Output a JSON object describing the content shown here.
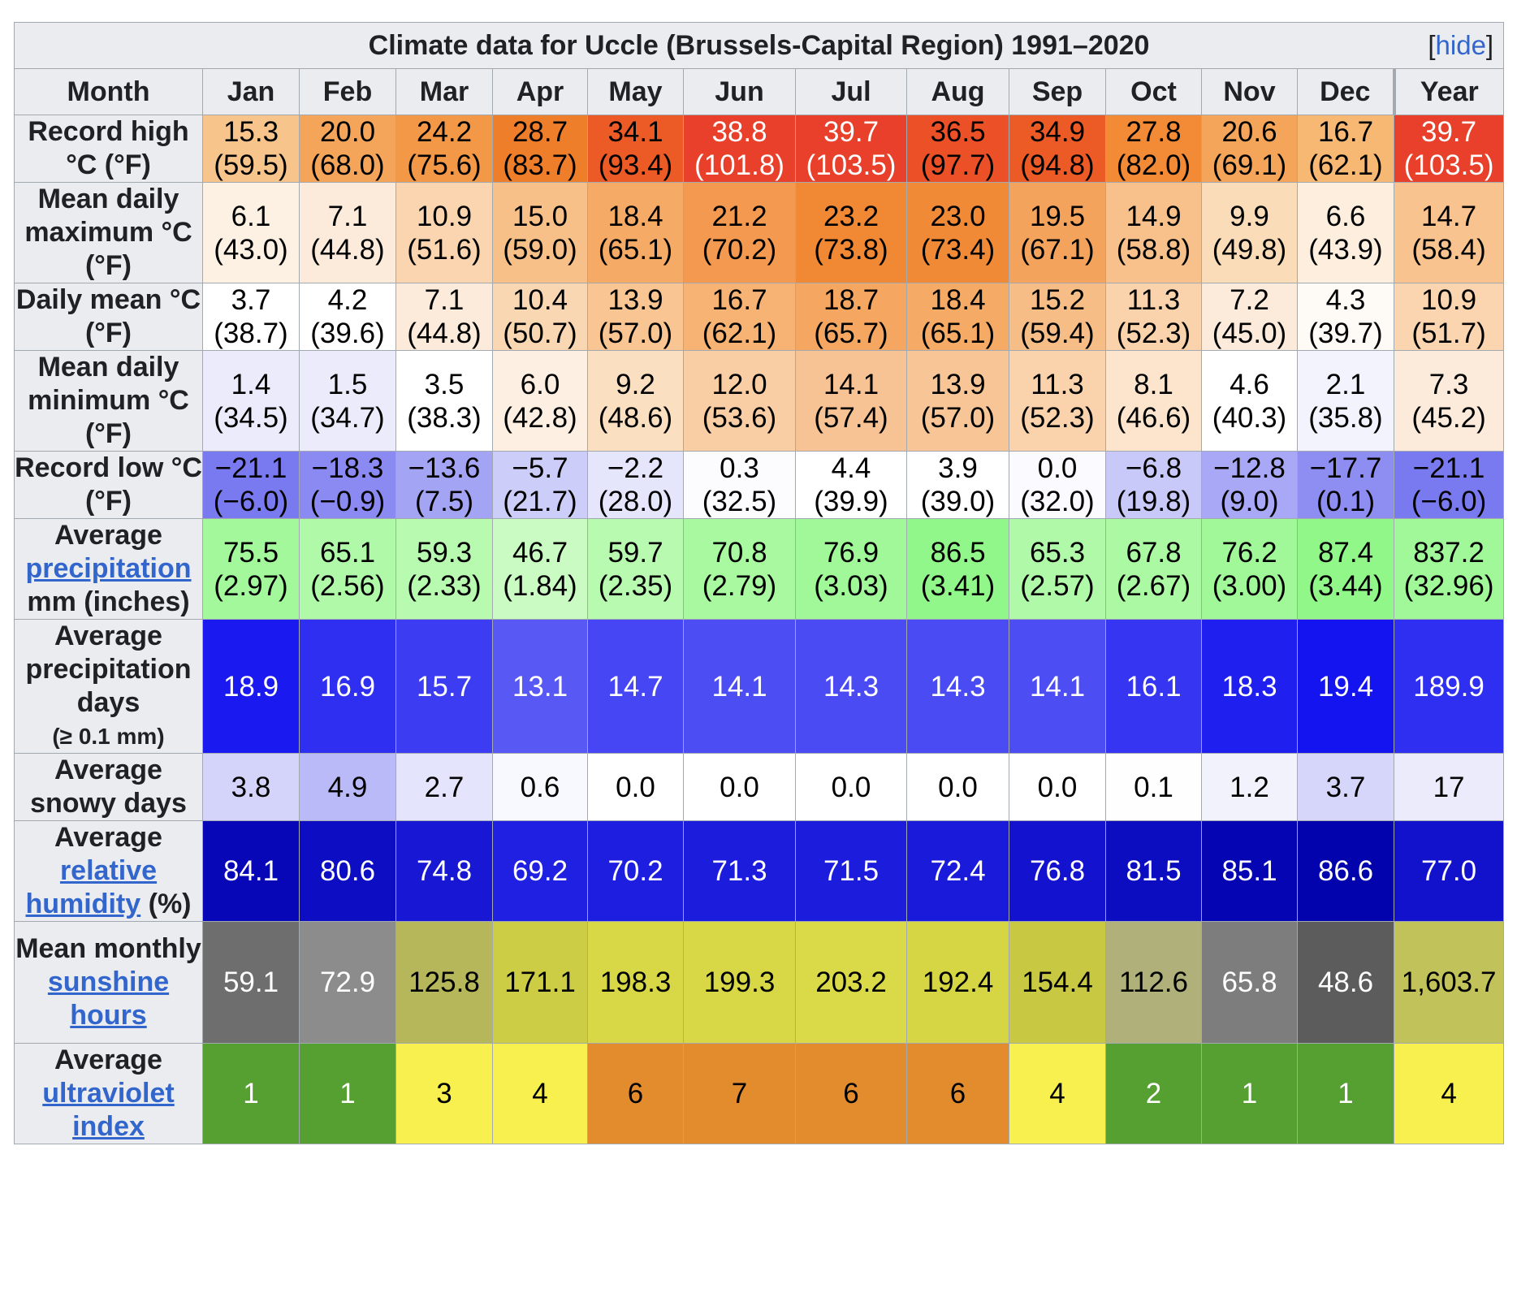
{
  "title": "Climate data for Uccle (Brussels-Capital Region) 1991–2020",
  "hide_open": "[",
  "hide_label": "hide",
  "hide_close": "]",
  "month_label": "Month",
  "columns": [
    "Jan",
    "Feb",
    "Mar",
    "Apr",
    "May",
    "Jun",
    "Jul",
    "Aug",
    "Sep",
    "Oct",
    "Nov",
    "Dec",
    "Year"
  ],
  "rows": [
    {
      "id": "record-high",
      "label_parts": [
        {
          "t": "Record high °C (°F)"
        }
      ],
      "values": [
        "15.3\n(59.5)",
        "20.0\n(68.0)",
        "24.2\n(75.6)",
        "28.7\n(83.7)",
        "34.1\n(93.4)",
        "38.8\n(101.8)",
        "39.7\n(103.5)",
        "36.5\n(97.7)",
        "34.9\n(94.8)",
        "27.8\n(82.0)",
        "20.6\n(69.1)",
        "16.7\n(62.1)",
        "39.7\n(103.5)"
      ],
      "colors": [
        "#f7c48b",
        "#f4a55a",
        "#f29846",
        "#ef7e2b",
        "#ec5a26",
        "#e8402a",
        "#e8402a",
        "#ec5026",
        "#ec5a26",
        "#f28a36",
        "#f4a55a",
        "#f6b872",
        "#e8402a"
      ],
      "text_colors": [
        "#000",
        "#000",
        "#000",
        "#000",
        "#000",
        "#fff",
        "#fff",
        "#000",
        "#000",
        "#000",
        "#000",
        "#000",
        "#fff"
      ]
    },
    {
      "id": "mean-max",
      "label_parts": [
        {
          "t": "Mean daily maximum °C (°F)"
        }
      ],
      "values": [
        "6.1\n(43.0)",
        "7.1\n(44.8)",
        "10.9\n(51.6)",
        "15.0\n(59.0)",
        "18.4\n(65.1)",
        "21.2\n(70.2)",
        "23.2\n(73.8)",
        "23.0\n(73.4)",
        "19.5\n(67.1)",
        "14.9\n(58.8)",
        "9.9\n(49.8)",
        "6.6\n(43.9)",
        "14.7\n(58.4)"
      ],
      "colors": [
        "#fdf1e4",
        "#fcebda",
        "#fad5b0",
        "#f8c089",
        "#f5aa65",
        "#f39a50",
        "#f18833",
        "#f18a36",
        "#f4a35c",
        "#f8c18b",
        "#fbdcb9",
        "#fdeedd",
        "#f8c38e"
      ],
      "text_colors": [
        "#000",
        "#000",
        "#000",
        "#000",
        "#000",
        "#000",
        "#000",
        "#000",
        "#000",
        "#000",
        "#000",
        "#000",
        "#000"
      ]
    },
    {
      "id": "daily-mean",
      "label_parts": [
        {
          "t": "Daily mean °C (°F)"
        }
      ],
      "values": [
        "3.7\n(38.7)",
        "4.2\n(39.6)",
        "7.1\n(44.8)",
        "10.4\n(50.7)",
        "13.9\n(57.0)",
        "16.7\n(62.1)",
        "18.7\n(65.7)",
        "18.4\n(65.1)",
        "15.2\n(59.4)",
        "11.3\n(52.3)",
        "7.2\n(45.0)",
        "4.3\n(39.7)",
        "10.9\n(51.7)"
      ],
      "colors": [
        "#ffffff",
        "#ffffff",
        "#fcebda",
        "#fad7b3",
        "#f8c593",
        "#f6b374",
        "#f5a762",
        "#f5aa65",
        "#f7bd87",
        "#fad2ab",
        "#fcebda",
        "#fefaf5",
        "#fad5b0"
      ],
      "text_colors": [
        "#000",
        "#000",
        "#000",
        "#000",
        "#000",
        "#000",
        "#000",
        "#000",
        "#000",
        "#000",
        "#000",
        "#000",
        "#000"
      ]
    },
    {
      "id": "mean-min",
      "label_parts": [
        {
          "t": "Mean daily minimum °C (°F)"
        }
      ],
      "values": [
        "1.4\n(34.5)",
        "1.5\n(34.7)",
        "3.5\n(38.3)",
        "6.0\n(42.8)",
        "9.2\n(48.6)",
        "12.0\n(53.6)",
        "14.1\n(57.4)",
        "13.9\n(57.0)",
        "11.3\n(52.3)",
        "8.1\n(46.6)",
        "4.6\n(40.3)",
        "2.1\n(35.8)",
        "7.3\n(45.2)"
      ],
      "colors": [
        "#ebebfb",
        "#ebebfb",
        "#ffffff",
        "#fdf0e2",
        "#fbdfc1",
        "#f9cea4",
        "#f8c394",
        "#f8c597",
        "#fad3ad",
        "#fce5cc",
        "#ffffff",
        "#f3f3fd",
        "#fceadb"
      ],
      "text_colors": [
        "#000",
        "#000",
        "#000",
        "#000",
        "#000",
        "#000",
        "#000",
        "#000",
        "#000",
        "#000",
        "#000",
        "#000",
        "#000"
      ]
    },
    {
      "id": "record-low",
      "label_parts": [
        {
          "t": "Record low °C (°F)"
        }
      ],
      "values": [
        "−21.1\n(−6.0)",
        "−18.3\n(−0.9)",
        "−13.6\n(7.5)",
        "−5.7\n(21.7)",
        "−2.2\n(28.0)",
        "0.3\n(32.5)",
        "4.4\n(39.9)",
        "3.9\n(39.0)",
        "0.0\n(32.0)",
        "−6.8\n(19.8)",
        "−12.8\n(9.0)",
        "−17.7\n(0.1)",
        "−21.1\n(−6.0)"
      ],
      "colors": [
        "#7a7af0",
        "#8a8af2",
        "#a4a4f5",
        "#cdcdf9",
        "#e5e5fc",
        "#fcfcff",
        "#ffffff",
        "#ffffff",
        "#fafaff",
        "#c9c9f9",
        "#a8a8f6",
        "#8d8df2",
        "#7a7af0"
      ],
      "text_colors": [
        "#000",
        "#000",
        "#000",
        "#000",
        "#000",
        "#000",
        "#000",
        "#000",
        "#000",
        "#000",
        "#000",
        "#000",
        "#000"
      ]
    },
    {
      "id": "precip",
      "label_parts": [
        {
          "t": "Average "
        },
        {
          "t": "precipitation",
          "link": true
        },
        {
          "t": " mm (inches)"
        }
      ],
      "values": [
        "75.5\n(2.97)",
        "65.1\n(2.56)",
        "59.3\n(2.33)",
        "46.7\n(1.84)",
        "59.7\n(2.35)",
        "70.8\n(2.79)",
        "76.9\n(3.03)",
        "86.5\n(3.41)",
        "65.3\n(2.57)",
        "67.8\n(2.67)",
        "76.2\n(3.00)",
        "87.4\n(3.44)",
        "837.2\n(32.96)"
      ],
      "colors": [
        "#a2f89a",
        "#b0f9a8",
        "#b8faaf",
        "#c9fbc2",
        "#b8faaf",
        "#a8f9a0",
        "#a0f898",
        "#92f78a",
        "#b0f9a8",
        "#acf9a4",
        "#a1f899",
        "#91f789",
        "#a1f899"
      ],
      "text_colors": [
        "#000",
        "#000",
        "#000",
        "#000",
        "#000",
        "#000",
        "#000",
        "#000",
        "#000",
        "#000",
        "#000",
        "#000",
        "#000"
      ]
    },
    {
      "id": "precip-days",
      "label_parts": [
        {
          "t": "Average precipitation days"
        },
        {
          "t": "(≥ 0.1 mm)",
          "small": true,
          "block": true
        }
      ],
      "values": [
        "18.9",
        "16.9",
        "15.7",
        "13.1",
        "14.7",
        "14.1",
        "14.3",
        "14.3",
        "14.1",
        "16.1",
        "18.3",
        "19.4",
        "189.9"
      ],
      "colors": [
        "#1a1af0",
        "#2f2ff2",
        "#3c3cf3",
        "#5858f5",
        "#4646f4",
        "#4d4df4",
        "#4b4bf4",
        "#4b4bf4",
        "#4d4df4",
        "#3535f2",
        "#1f1ff0",
        "#1414f0",
        "#2f2ff2"
      ],
      "text_colors": [
        "#fff",
        "#fff",
        "#fff",
        "#fff",
        "#fff",
        "#fff",
        "#fff",
        "#fff",
        "#fff",
        "#fff",
        "#fff",
        "#fff",
        "#fff"
      ]
    },
    {
      "id": "snow-days",
      "label_parts": [
        {
          "t": "Average snowy days"
        }
      ],
      "values": [
        "3.8",
        "4.9",
        "2.7",
        "0.6",
        "0.0",
        "0.0",
        "0.0",
        "0.0",
        "0.0",
        "0.1",
        "1.2",
        "3.7",
        "17"
      ],
      "colors": [
        "#d4d4fb",
        "#babaf8",
        "#e4e4fc",
        "#f8f8ff",
        "#ffffff",
        "#ffffff",
        "#ffffff",
        "#ffffff",
        "#ffffff",
        "#fefeff",
        "#f2f2fd",
        "#d6d6fb",
        "#ebebfb"
      ],
      "text_colors": [
        "#000",
        "#000",
        "#000",
        "#000",
        "#000",
        "#000",
        "#000",
        "#000",
        "#000",
        "#000",
        "#000",
        "#000",
        "#000"
      ]
    },
    {
      "id": "humidity",
      "label_parts": [
        {
          "t": "Average "
        },
        {
          "t": "relative humidity",
          "link": true
        },
        {
          "t": " (%)"
        }
      ],
      "values": [
        "84.1",
        "80.6",
        "74.8",
        "69.2",
        "70.2",
        "71.3",
        "71.5",
        "72.4",
        "76.8",
        "81.5",
        "85.1",
        "86.6",
        "77.0"
      ],
      "colors": [
        "#0707b8",
        "#0d0dc4",
        "#1717d4",
        "#2020e3",
        "#1e1ee0",
        "#1c1cdd",
        "#1c1cdd",
        "#1a1ada",
        "#1313cf",
        "#0c0cc1",
        "#0505b4",
        "#0303ae",
        "#1212cd"
      ],
      "text_colors": [
        "#fff",
        "#fff",
        "#fff",
        "#fff",
        "#fff",
        "#fff",
        "#fff",
        "#fff",
        "#fff",
        "#fff",
        "#fff",
        "#fff",
        "#fff"
      ]
    },
    {
      "id": "sunshine",
      "label_parts": [
        {
          "t": "Mean monthly "
        },
        {
          "t": "sunshine hours",
          "link": true
        }
      ],
      "values": [
        "59.1",
        "72.9",
        "125.8",
        "171.1",
        "198.3",
        "199.3",
        "203.2",
        "192.4",
        "154.4",
        "112.6",
        "65.8",
        "48.6",
        "1,603.7"
      ],
      "colors": [
        "#6e6e6e",
        "#8c8c8c",
        "#b6b65a",
        "#cdcd45",
        "#d8d846",
        "#d8d846",
        "#dada48",
        "#d6d644",
        "#c8c842",
        "#b0b07a",
        "#7d7d7d",
        "#5c5c5c",
        "#c2c25a"
      ],
      "text_colors": [
        "#fff",
        "#fff",
        "#000",
        "#000",
        "#000",
        "#000",
        "#000",
        "#000",
        "#000",
        "#000",
        "#fff",
        "#fff",
        "#000"
      ]
    },
    {
      "id": "uv",
      "label_parts": [
        {
          "t": "Average "
        },
        {
          "t": "ultraviolet index",
          "link": true
        }
      ],
      "values": [
        "1",
        "1",
        "3",
        "4",
        "6",
        "7",
        "6",
        "6",
        "4",
        "2",
        "1",
        "1",
        "4"
      ],
      "colors": [
        "#56a032",
        "#56a032",
        "#f8f04e",
        "#f8f04e",
        "#e28c2e",
        "#e28c2e",
        "#e28c2e",
        "#e28c2e",
        "#f8f04e",
        "#56a032",
        "#56a032",
        "#56a032",
        "#f8f04e"
      ],
      "text_colors": [
        "#fff",
        "#fff",
        "#000",
        "#000",
        "#000",
        "#000",
        "#000",
        "#000",
        "#000",
        "#fff",
        "#fff",
        "#fff",
        "#000"
      ]
    }
  ]
}
